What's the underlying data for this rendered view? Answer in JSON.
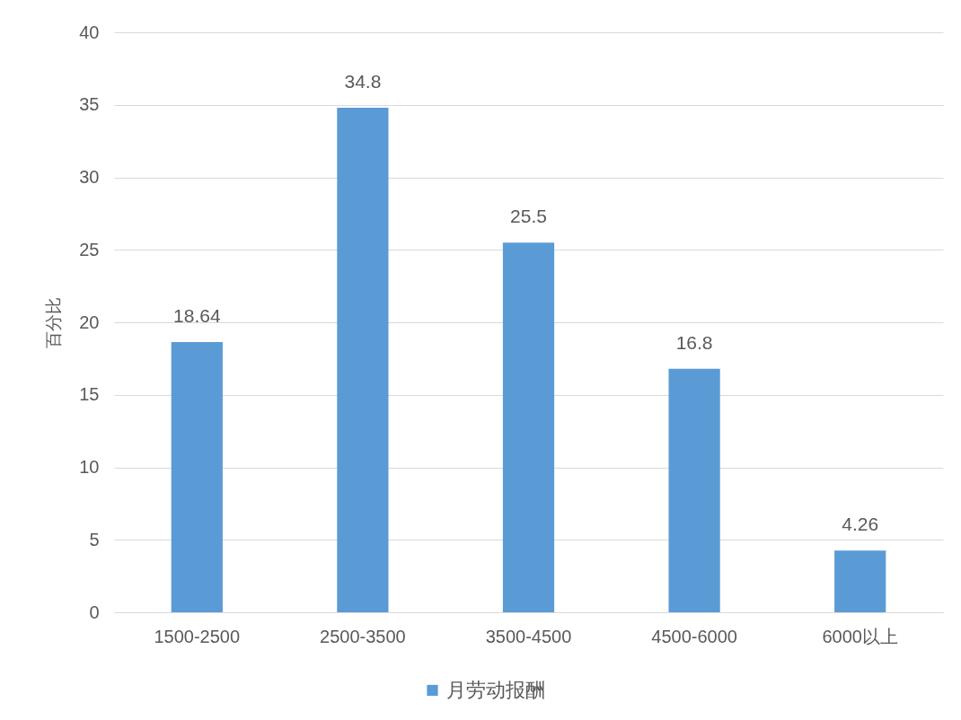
{
  "chart_data": {
    "type": "bar",
    "ylabel": "百分比",
    "categories": [
      "1500-2500",
      "2500-3500",
      "3500-4500",
      "4500-6000",
      "6000以上"
    ],
    "series": [
      {
        "name": "月劳动报酬",
        "color": "#5b9bd5",
        "values": [
          18.64,
          34.8,
          25.5,
          16.8,
          4.26
        ]
      }
    ],
    "ylim": [
      0,
      40
    ],
    "yticks": [
      0,
      5,
      10,
      15,
      20,
      25,
      30,
      35,
      40
    ],
    "grid": "y",
    "legend": "bottom",
    "data_labels": true
  }
}
